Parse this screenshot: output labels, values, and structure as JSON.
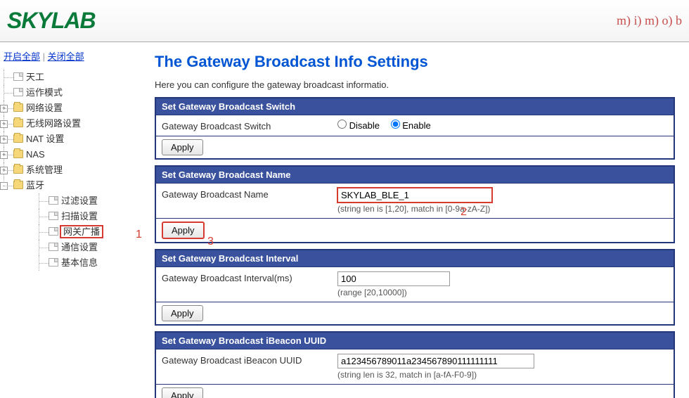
{
  "header": {
    "logo_text": "SKYLAB",
    "mimo_text": "m) i) m) o) b"
  },
  "sidebar": {
    "open_all": "开启全部",
    "close_all": "关闭全部",
    "items": [
      {
        "label": "天工",
        "type": "page",
        "expander": null,
        "children": []
      },
      {
        "label": "运作模式",
        "type": "page",
        "expander": null,
        "children": []
      },
      {
        "label": "网络设置",
        "type": "folder",
        "expander": "+",
        "children": []
      },
      {
        "label": "无线网路设置",
        "type": "folder",
        "expander": "+",
        "children": []
      },
      {
        "label": "NAT 设置",
        "type": "folder",
        "expander": "+",
        "children": []
      },
      {
        "label": "NAS",
        "type": "folder",
        "expander": "+",
        "children": []
      },
      {
        "label": "系统管理",
        "type": "folder",
        "expander": "+",
        "children": []
      },
      {
        "label": "蓝牙",
        "type": "folder",
        "expander": "-",
        "children": [
          {
            "label": "过滤设置",
            "type": "page"
          },
          {
            "label": "扫描设置",
            "type": "page"
          },
          {
            "label": "网关广播",
            "type": "page",
            "highlight": true
          },
          {
            "label": "通信设置",
            "type": "page"
          },
          {
            "label": "基本信息",
            "type": "page"
          }
        ]
      }
    ]
  },
  "page": {
    "title": "The Gateway Broadcast Info Settings",
    "description": "Here you can configure the gateway broadcast informatio."
  },
  "sections": {
    "switch": {
      "header": "Set Gateway Broadcast Switch",
      "label": "Gateway Broadcast Switch",
      "option_disable": "Disable",
      "option_enable": "Enable",
      "apply": "Apply"
    },
    "name": {
      "header": "Set Gateway Broadcast Name",
      "label": "Gateway Broadcast Name",
      "value": "SKYLAB_BLE_1",
      "hint": "(string len is [1,20], match in [0-9a-zA-Z])",
      "apply": "Apply"
    },
    "interval": {
      "header": "Set Gateway Broadcast Interval",
      "label": "Gateway Broadcast Interval(ms)",
      "value": "100",
      "hint": "(range [20,10000])",
      "apply": "Apply"
    },
    "uuid": {
      "header": "Set Gateway Broadcast iBeacon UUID",
      "label": "Gateway Broadcast iBeacon UUID",
      "value": "a123456789011a234567890111111111",
      "hint": "(string len is 32, match in [a-fA-F0-9])",
      "apply": "Apply"
    }
  },
  "annotations": {
    "a1": "1",
    "a2": "2",
    "a3": "3"
  }
}
